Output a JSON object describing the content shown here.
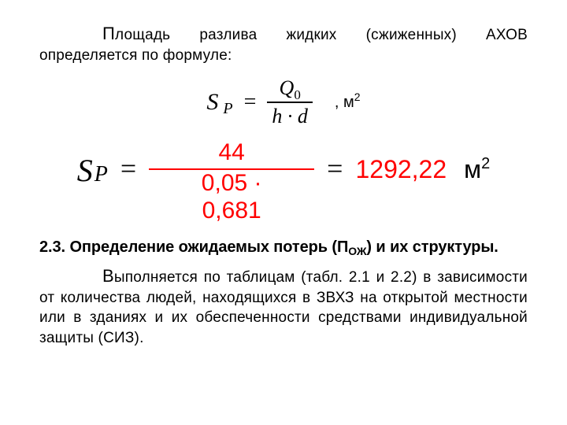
{
  "colors": {
    "text": "#000000",
    "accent": "#ff0000",
    "background": "#ffffff"
  },
  "para1": "Площадь разлива жидких (сжиженных) АХОВ определяется по формуле:",
  "formula1": {
    "lhs_sym": "S",
    "lhs_sub": "P",
    "eq": "=",
    "numerator_sym": "Q",
    "numerator_sub": "0",
    "denominator": "h · d",
    "unit_pre": ", м",
    "unit_sup": "2"
  },
  "formula2": {
    "lhs_sym": "S",
    "lhs_sub": "P",
    "eq": "=",
    "numerator": "44",
    "denom_line1": "0,05 ·",
    "denom_line2": "0,681",
    "eq2": "=",
    "result": "1292,22",
    "unit": "м",
    "unit_sup": "2"
  },
  "heading": {
    "num": "2.3.",
    "text_a": "Определение ожидаемых потерь (П",
    "sub": "ОЖ",
    "text_b": ") и их структуры."
  },
  "para2": "Выполняется по таблицам (табл. 2.1 и 2.2) в зависимости от количества людей, находящихся в ЗВХЗ на открытой местности или в зданиях и их обеспеченности средствами индивидуальной защиты (СИЗ)."
}
